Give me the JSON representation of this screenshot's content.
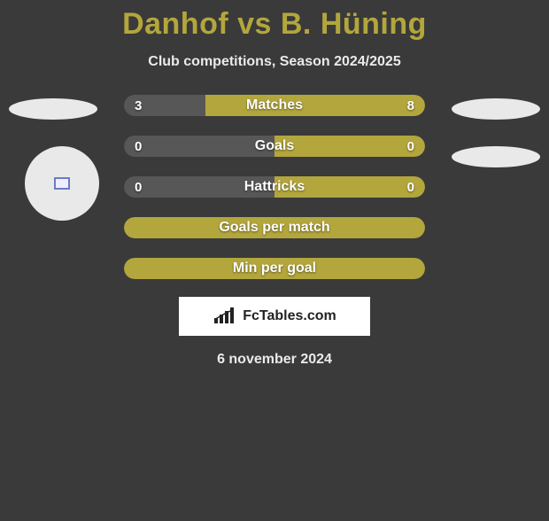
{
  "colors": {
    "title": "#b3a63c",
    "bar_olive": "#b3a63c",
    "bar_grey": "#575757",
    "background": "#3a3a3a",
    "text_light": "#eaeaea",
    "badge_bg": "#ffffff",
    "badge_text": "#222222",
    "oval_bg": "#e9e9e9"
  },
  "title": "Danhof vs B. Hüning",
  "subtitle": "Club competitions, Season 2024/2025",
  "rows": [
    {
      "label": "Matches",
      "left_value": "3",
      "right_value": "8",
      "left_pct": 27,
      "right_pct": 73,
      "left_color": "#575757",
      "right_color": "#b3a63c"
    },
    {
      "label": "Goals",
      "left_value": "0",
      "right_value": "0",
      "left_pct": 50,
      "right_pct": 50,
      "left_color": "#575757",
      "right_color": "#b3a63c"
    },
    {
      "label": "Hattricks",
      "left_value": "0",
      "right_value": "0",
      "left_pct": 50,
      "right_pct": 50,
      "left_color": "#575757",
      "right_color": "#b3a63c"
    },
    {
      "label": "Goals per match",
      "full": true,
      "color": "#b3a63c"
    },
    {
      "label": "Min per goal",
      "full": true,
      "color": "#b3a63c"
    }
  ],
  "badge_text": "FcTables.com",
  "date": "6 november 2024"
}
